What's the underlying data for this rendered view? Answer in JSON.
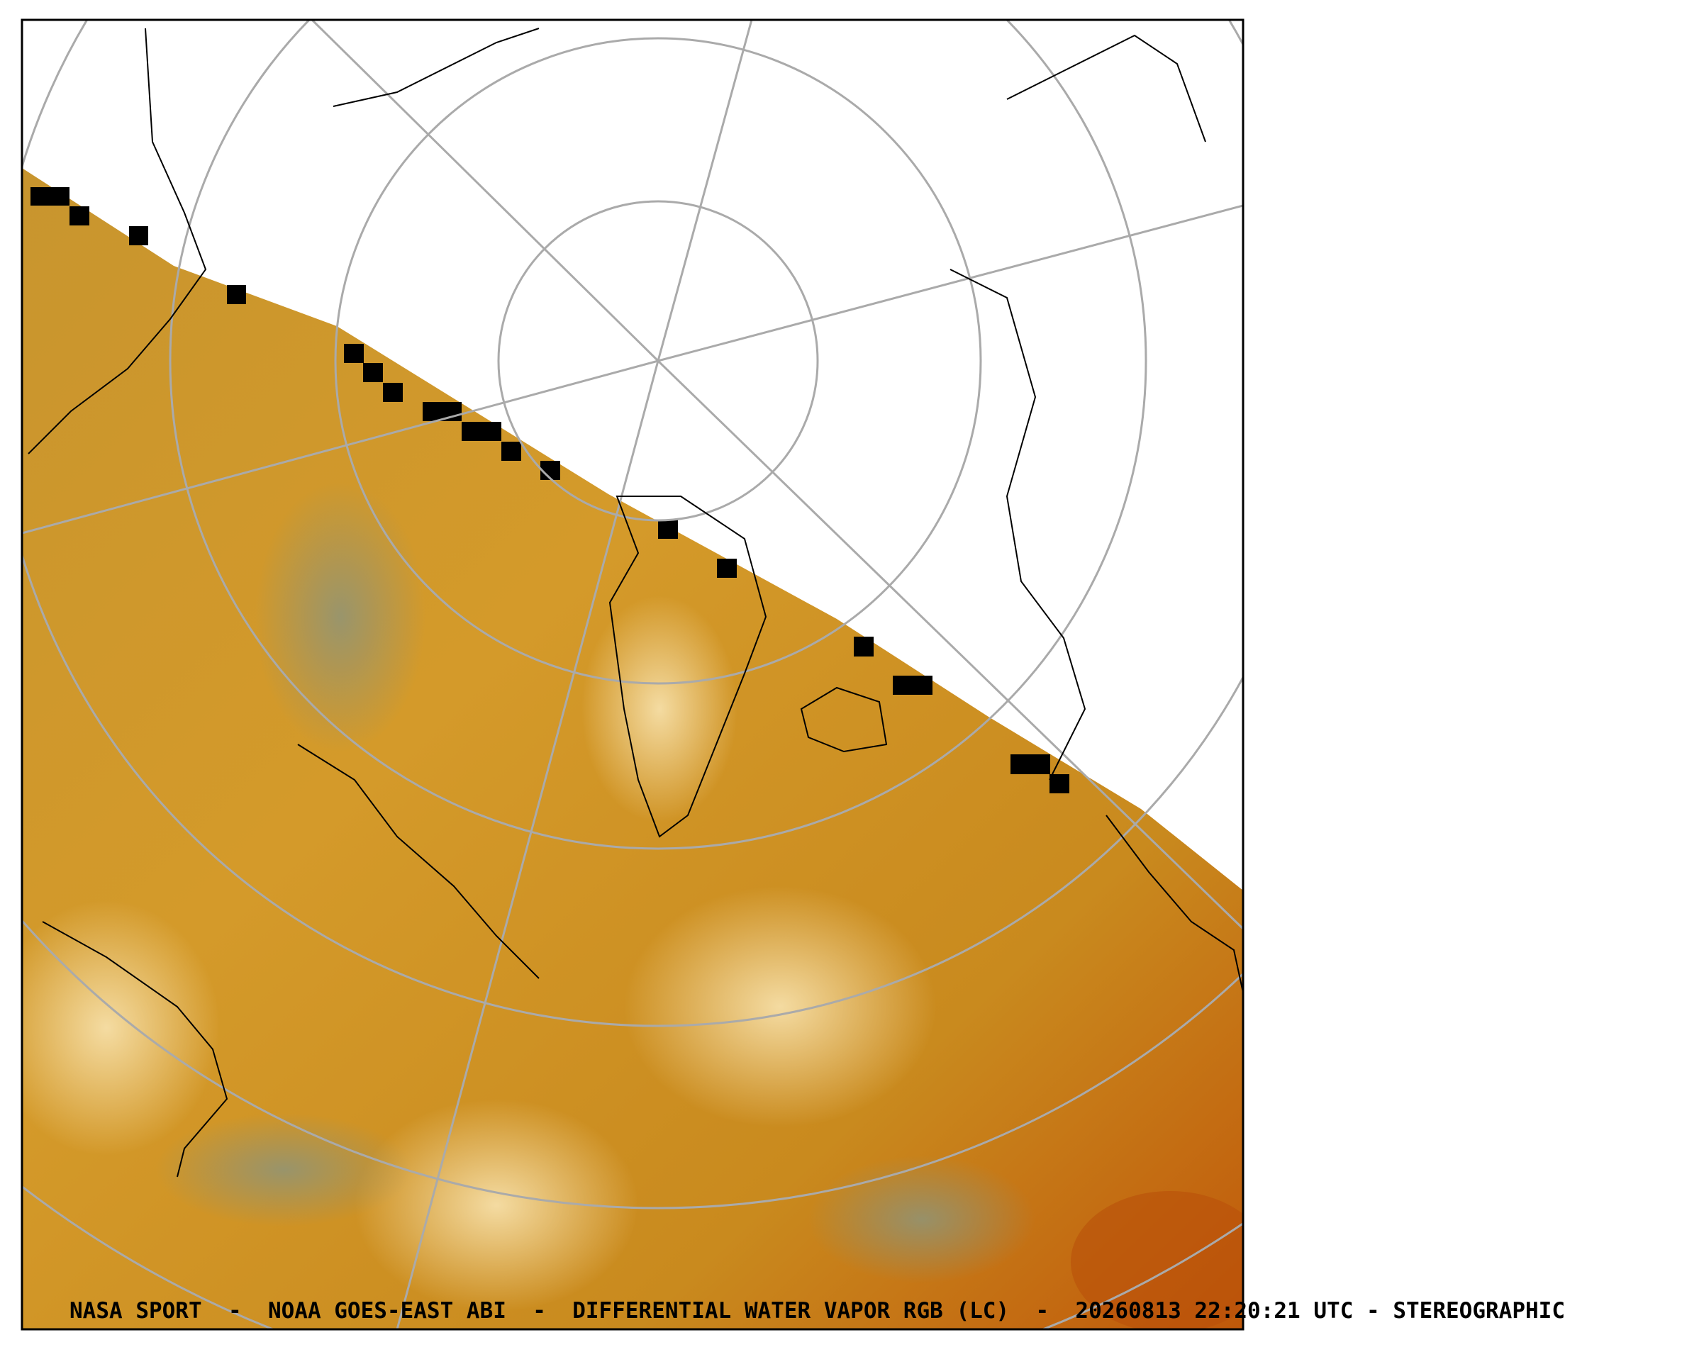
{
  "caption": "NASA SPORT  -  NOAA GOES-EAST ABI  -  DIFFERENTIAL WATER VAPOR RGB (LC)  -  20260813 22:20:21 UTC - STEREOGRAPHIC"
}
